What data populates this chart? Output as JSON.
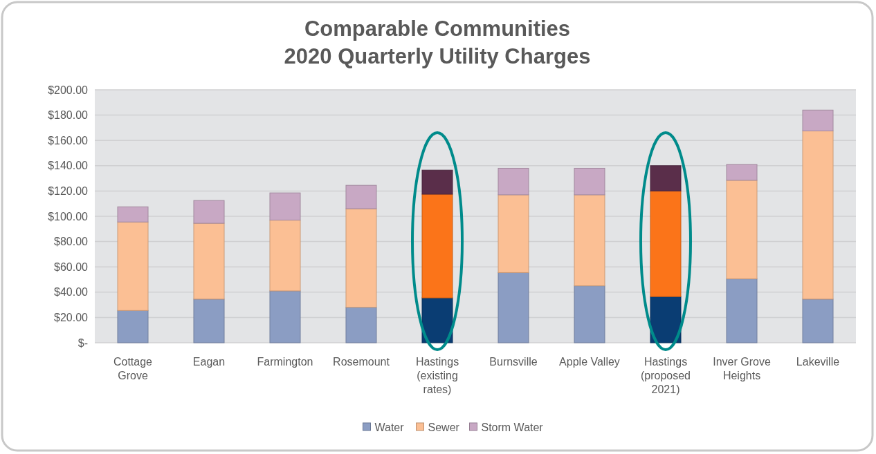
{
  "chart_data": {
    "type": "bar",
    "stacked": true,
    "title": "Comparable Communities\n2020 Quarterly Utility Charges",
    "categories": [
      "Cottage Grove",
      "Eagan",
      "Farmington",
      "Rosemount",
      "Hastings (existing rates)",
      "Burnsville",
      "Apple Valley",
      "Hastings (proposed 2021)",
      "Inver Grove Heights",
      "Lakeville"
    ],
    "series": [
      {
        "name": "Water",
        "color": "#8b9dc3",
        "colors": [
          "#8b9dc3",
          "#8b9dc3",
          "#8b9dc3",
          "#8b9dc3",
          "#0a3d73",
          "#8b9dc3",
          "#8b9dc3",
          "#0a3d73",
          "#8b9dc3",
          "#8b9dc3"
        ],
        "values": [
          25.5,
          34.5,
          41,
          28,
          35.5,
          55.5,
          45,
          36.5,
          50.5,
          34.5
        ]
      },
      {
        "name": "Sewer",
        "color": "#fbbf94",
        "colors": [
          "#fbbf94",
          "#fbbf94",
          "#fbbf94",
          "#fbbf94",
          "#fb7419",
          "#fbbf94",
          "#fbbf94",
          "#fb7419",
          "#fbbf94",
          "#fbbf94"
        ],
        "values": [
          70,
          60,
          56,
          78,
          82,
          61.5,
          72,
          83.5,
          78,
          133
        ]
      },
      {
        "name": "Storm Water",
        "color": "#c8a8c4",
        "colors": [
          "#c8a8c4",
          "#c8a8c4",
          "#c8a8c4",
          "#c8a8c4",
          "#5a2e4a",
          "#c8a8c4",
          "#c8a8c4",
          "#5a2e4a",
          "#c8a8c4",
          "#c8a8c4"
        ],
        "values": [
          12,
          18,
          21.5,
          18.5,
          19,
          21,
          21,
          20,
          12.5,
          16.5
        ]
      }
    ],
    "ylim": [
      0,
      200
    ],
    "yticks": [
      {
        "value": 0,
        "label": "$-"
      },
      {
        "value": 20,
        "label": "$20.00"
      },
      {
        "value": 40,
        "label": "$40.00"
      },
      {
        "value": 60,
        "label": "$60.00"
      },
      {
        "value": 80,
        "label": "$80.00"
      },
      {
        "value": 100,
        "label": "$100.00"
      },
      {
        "value": 120,
        "label": "$120.00"
      },
      {
        "value": 140,
        "label": "$140.00"
      },
      {
        "value": 160,
        "label": "$160.00"
      },
      {
        "value": 180,
        "label": "$180.00"
      },
      {
        "value": 200,
        "label": "$200.00"
      }
    ],
    "grid": "y",
    "legend": "bottom"
  }
}
